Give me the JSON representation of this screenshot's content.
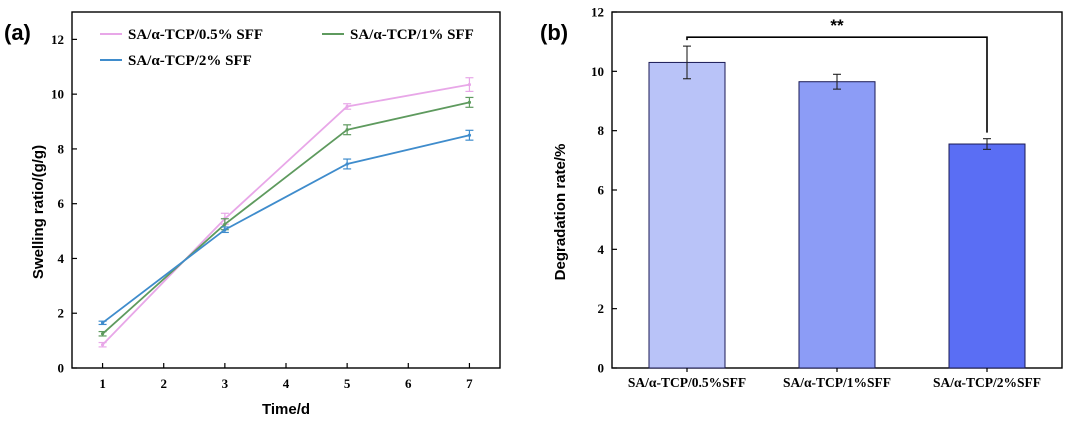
{
  "colors": {
    "pct05": "#e8a7e8",
    "pct1": "#5e9a5e",
    "pct2": "#3f8ccc",
    "bar1": "#b9c3f8",
    "bar2": "#8c9cf6",
    "bar3": "#5a6ef4",
    "bar_edge": "#1a1a55",
    "axis": "#000000"
  },
  "chart_data": [
    {
      "panel_label": "(a)",
      "type": "line",
      "xlabel": "Time/d",
      "ylabel": "Swelling ratio/(g/g)",
      "xlim": [
        0.5,
        7.5
      ],
      "ylim": [
        0,
        13
      ],
      "xticks": [
        1,
        2,
        3,
        4,
        5,
        6,
        7
      ],
      "yticks": [
        0,
        2,
        4,
        6,
        8,
        10,
        12
      ],
      "x": [
        1,
        3,
        5,
        7
      ],
      "series": [
        {
          "name": "SA/α-TCP/0.5% SFF",
          "color_key": "pct05",
          "values": [
            0.85,
            5.45,
            9.55,
            10.35
          ],
          "errors": [
            0.08,
            0.2,
            0.1,
            0.25
          ]
        },
        {
          "name": "SA/α-TCP/1% SFF",
          "color_key": "pct1",
          "values": [
            1.25,
            5.25,
            8.7,
            9.7
          ],
          "errors": [
            0.08,
            0.2,
            0.18,
            0.18
          ]
        },
        {
          "name": "SA/α-TCP/2% SFF",
          "color_key": "pct2",
          "values": [
            1.65,
            5.05,
            7.45,
            8.5
          ],
          "errors": [
            0.06,
            0.1,
            0.18,
            0.18
          ]
        }
      ]
    },
    {
      "panel_label": "(b)",
      "type": "bar",
      "xlabel": "",
      "ylabel": "Degradation rate/%",
      "ylim": [
        0,
        12
      ],
      "yticks": [
        0,
        2,
        4,
        6,
        8,
        10,
        12
      ],
      "categories": [
        "SA/α-TCP/0.5%SFF",
        "SA/α-TCP/1%SFF",
        "SA/α-TCP/2%SFF"
      ],
      "values": [
        10.3,
        9.65,
        7.55
      ],
      "errors": [
        0.55,
        0.25,
        0.18
      ],
      "bar_color_keys": [
        "bar1",
        "bar2",
        "bar3"
      ],
      "significance": {
        "label": "**",
        "between": [
          0,
          2
        ],
        "level": 11.15
      }
    }
  ]
}
